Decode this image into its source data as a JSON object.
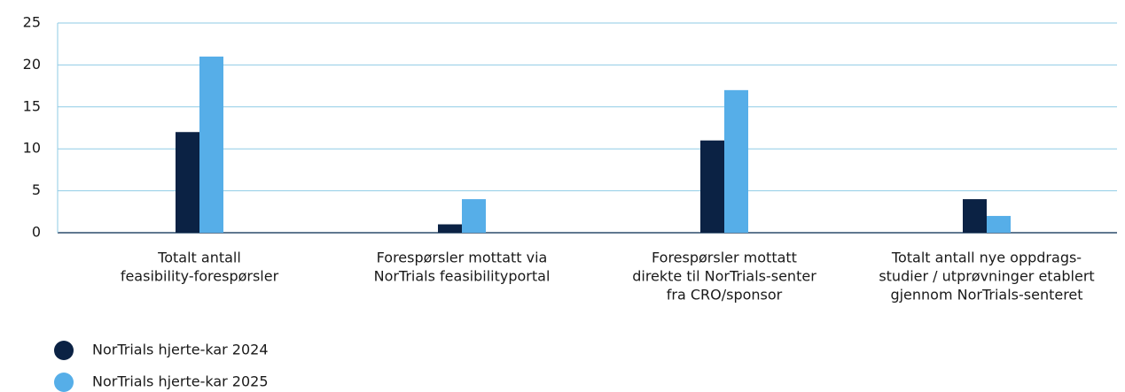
{
  "chart_data": {
    "type": "bar",
    "categories": [
      [
        "Totalt antall",
        "feasibility-forespørsler"
      ],
      [
        "Forespørsler mottatt via",
        "NorTrials feasibilityportal"
      ],
      [
        "Forespørsler mottatt",
        "direkte til NorTrials-senter",
        "fra CRO/sponsor"
      ],
      [
        "Totalt antall nye oppdrags-",
        "studier / utprøvninger etablert",
        "gjennom NorTrials-senteret"
      ]
    ],
    "series": [
      {
        "name": "NorTrials hjerte-kar 2024",
        "color": "#0b2244",
        "values": [
          12,
          1,
          11,
          4
        ]
      },
      {
        "name": "NorTrials hjerte-kar 2025",
        "color": "#56aee8",
        "values": [
          21,
          4,
          17,
          2
        ]
      }
    ],
    "ylim": [
      0,
      25
    ],
    "yticks": [
      0,
      5,
      10,
      15,
      20,
      25
    ],
    "grid": true
  }
}
